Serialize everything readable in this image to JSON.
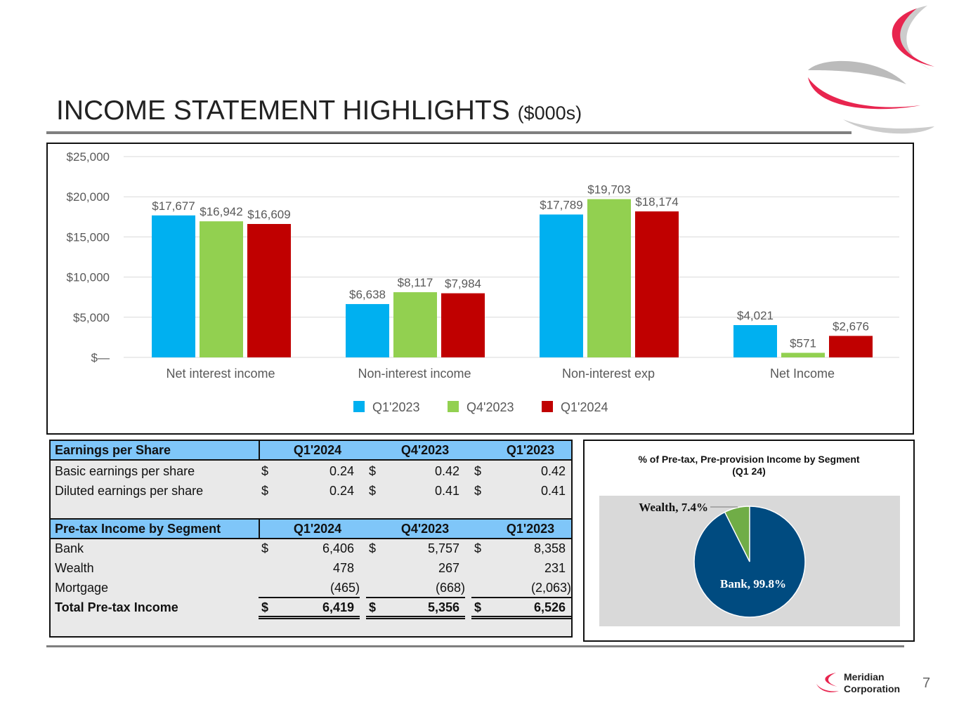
{
  "header": {
    "title": "INCOME STATEMENT HIGHLIGHTS",
    "unit": "($000s)"
  },
  "chart_data": [
    {
      "type": "bar",
      "categories": [
        "Net interest income",
        "Non-interest income",
        "Non-interest exp",
        "Net Income"
      ],
      "series": [
        {
          "name": "Q1'2023",
          "color": "#00b0f0",
          "values": [
            17677,
            6638,
            17789,
            4021
          ],
          "labels": [
            "$17,677",
            "$6,638",
            "$17,789",
            "$4,021"
          ]
        },
        {
          "name": "Q4'2023",
          "color": "#92d050",
          "values": [
            16942,
            8117,
            19703,
            571
          ],
          "labels": [
            "$16,942",
            "$8,117",
            "$19,703",
            "$571"
          ]
        },
        {
          "name": "Q1'2024",
          "color": "#c00000",
          "values": [
            16609,
            7984,
            18174,
            2676
          ],
          "labels": [
            "$16,609",
            "$7,984",
            "$18,174",
            "$2,676"
          ]
        }
      ],
      "ylim": [
        0,
        25000
      ],
      "yticks": [
        {
          "v": 0,
          "label": "$—"
        },
        {
          "v": 5000,
          "label": "$5,000"
        },
        {
          "v": 10000,
          "label": "$10,000"
        },
        {
          "v": 15000,
          "label": "$15,000"
        },
        {
          "v": 20000,
          "label": "$20,000"
        },
        {
          "v": 25000,
          "label": "$25,000"
        }
      ],
      "grid": true,
      "legend": "bottom"
    },
    {
      "type": "pie",
      "title": "% of Pre-tax, Pre-provision Income by Segment",
      "subtitle": "(Q1 24)",
      "slices": [
        {
          "name": "Wealth",
          "value": 7.4,
          "label": "Wealth, 7.4%",
          "color": "#70ad47"
        },
        {
          "name": "Bank",
          "value": 99.8,
          "label": "Bank, 99.8%",
          "color": "#004b80"
        }
      ]
    }
  ],
  "table": {
    "eps": {
      "header": [
        "Earnings per Share",
        "Q1'2024",
        "Q4'2023",
        "Q1'2023"
      ],
      "rows": [
        {
          "label": "Basic earnings per share",
          "cur": [
            "$",
            "$",
            "$"
          ],
          "vals": [
            "0.24",
            "0.42",
            "0.42"
          ]
        },
        {
          "label": "Diluted earnings per share",
          "cur": [
            "$",
            "$",
            "$"
          ],
          "vals": [
            "0.24",
            "0.41",
            "0.41"
          ]
        }
      ]
    },
    "segment": {
      "header": [
        "Pre-tax Income by Segment",
        "Q1'2024",
        "Q4'2023",
        "Q1'2023"
      ],
      "rows": [
        {
          "label": "Bank",
          "cur": [
            "$",
            "$",
            "$"
          ],
          "vals": [
            "6,406",
            "5,757",
            "8,358"
          ]
        },
        {
          "label": "Wealth",
          "cur": [
            "",
            "",
            ""
          ],
          "vals": [
            "478",
            "267",
            "231"
          ]
        },
        {
          "label": "Mortgage",
          "cur": [
            "",
            "",
            ""
          ],
          "vals": [
            "(465)",
            "(668)",
            "(2,063)"
          ]
        },
        {
          "label": "Total Pre-tax Income",
          "cur": [
            "$",
            "$",
            "$"
          ],
          "vals": [
            "6,419",
            "5,356",
            "6,526"
          ]
        }
      ]
    }
  },
  "footer": {
    "company_line1": "Meridian",
    "company_line2": "Corporation",
    "page": "7"
  }
}
